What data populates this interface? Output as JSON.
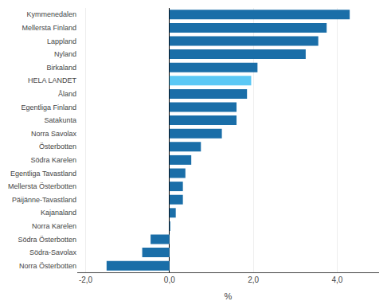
{
  "chart_data": {
    "type": "bar",
    "orientation": "horizontal",
    "categories": [
      "Norra Österbotten",
      "Södra-Savolax",
      "Södra Österbotten",
      "Norra Karelen",
      "Kajanaland",
      "Päijänne-Tavastland",
      "Mellersta Österbotten",
      "Egentliga Tavastland",
      "Södra Karelen",
      "Österbotten",
      "Norra Savolax",
      "Satakunta",
      "Egentliga Finland",
      "Åland",
      "HELA LANDET",
      "Birkaland",
      "Nyland",
      "Lappland",
      "Mellersta Finland",
      "Kymmenedalen"
    ],
    "values": [
      -1.5,
      -0.65,
      -0.45,
      0.02,
      0.15,
      0.32,
      0.32,
      0.38,
      0.52,
      0.75,
      1.25,
      1.6,
      1.6,
      1.85,
      1.95,
      2.1,
      3.25,
      3.55,
      3.75,
      4.3
    ],
    "colors": [
      "#1a6ea8",
      "#1a6ea8",
      "#1a6ea8",
      "#1a6ea8",
      "#1a6ea8",
      "#1a6ea8",
      "#1a6ea8",
      "#1a6ea8",
      "#1a6ea8",
      "#1a6ea8",
      "#1a6ea8",
      "#1a6ea8",
      "#1a6ea8",
      "#1a6ea8",
      "#5bc8f5",
      "#1a6ea8",
      "#1a6ea8",
      "#1a6ea8",
      "#1a6ea8",
      "#1a6ea8"
    ],
    "xlabel": "%",
    "xlim": [
      -2.2,
      5.0
    ],
    "xticks": [
      {
        "value": -2.0,
        "label": "-2,0"
      },
      {
        "value": 0.0,
        "label": "0,0"
      },
      {
        "value": 2.0,
        "label": "2,0"
      },
      {
        "value": 4.0,
        "label": "4,0"
      }
    ],
    "grid": true
  }
}
